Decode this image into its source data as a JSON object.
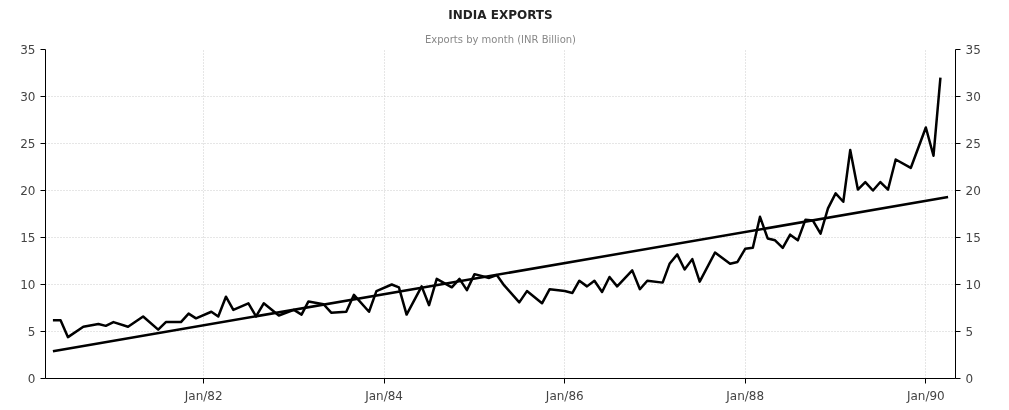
{
  "chart_data": {
    "type": "line",
    "title": "INDIA EXPORTS",
    "subtitle": "Exports by month (INR Billion)",
    "series": [
      {
        "color": "#000000",
        "x": [
          "1980-05",
          "1980-06",
          "1980-07",
          "1980-09",
          "1980-11",
          "1980-12",
          "1981-01",
          "1981-03",
          "1981-05",
          "1981-07",
          "1981-08",
          "1981-10",
          "1981-11",
          "1981-12",
          "1982-02",
          "1982-03",
          "1982-04",
          "1982-05",
          "1982-07",
          "1982-08",
          "1982-09",
          "1982-11",
          "1983-01",
          "1983-02",
          "1983-03",
          "1983-05",
          "1983-06",
          "1983-08",
          "1983-09",
          "1983-11",
          "1983-12",
          "1984-02",
          "1984-03",
          "1984-04",
          "1984-06",
          "1984-07",
          "1984-08",
          "1984-10",
          "1984-11",
          "1984-12",
          "1985-01",
          "1985-03",
          "1985-04",
          "1985-05",
          "1985-07",
          "1985-08",
          "1985-10",
          "1985-11",
          "1986-01",
          "1986-02",
          "1986-03",
          "1986-04",
          "1986-05",
          "1986-06",
          "1986-07",
          "1986-08",
          "1986-10",
          "1986-11",
          "1986-12",
          "1987-02",
          "1987-03",
          "1987-04",
          "1987-05",
          "1987-06",
          "1987-07",
          "1987-09",
          "1987-11",
          "1987-12",
          "1988-01",
          "1988-02",
          "1988-03",
          "1988-04",
          "1988-05",
          "1988-06",
          "1988-07",
          "1988-08",
          "1988-09",
          "1988-10",
          "1988-11",
          "1988-12",
          "1989-01",
          "1989-02",
          "1989-03",
          "1989-04",
          "1989-05",
          "1989-06",
          "1989-07",
          "1989-08",
          "1989-09",
          "1989-11",
          "1990-01",
          "1990-02",
          "1990-03"
        ],
        "values": [
          6.2,
          6.2,
          4.4,
          5.5,
          5.8,
          5.6,
          6.0,
          5.5,
          6.6,
          5.2,
          6.0,
          6.0,
          6.9,
          6.4,
          7.1,
          6.6,
          8.7,
          7.3,
          8.0,
          6.6,
          8.0,
          6.7,
          7.3,
          6.8,
          8.2,
          7.9,
          7.0,
          7.1,
          8.9,
          7.1,
          9.3,
          10.0,
          9.7,
          6.8,
          9.8,
          7.8,
          10.6,
          9.7,
          10.6,
          9.4,
          11.1,
          10.7,
          11.0,
          9.9,
          8.1,
          9.3,
          8.0,
          9.5,
          9.3,
          9.1,
          10.4,
          9.8,
          10.4,
          9.2,
          10.8,
          9.8,
          11.5,
          9.5,
          10.4,
          10.2,
          12.2,
          13.2,
          11.6,
          12.7,
          10.3,
          13.4,
          12.2,
          12.4,
          13.8,
          13.9,
          17.2,
          14.9,
          14.7,
          13.9,
          15.3,
          14.7,
          16.9,
          16.8,
          15.4,
          18.1,
          19.7,
          18.8,
          24.3,
          20.1,
          20.9,
          20.0,
          20.9,
          20.1,
          23.3,
          22.4,
          26.7,
          23.7,
          32.0
        ]
      },
      {
        "color": "#000000",
        "x": [
          "1980-05",
          "1990-04"
        ],
        "values": [
          2.9,
          19.3
        ]
      }
    ],
    "xlim": [
      "1980-04",
      "1990-05"
    ],
    "xticks": [
      {
        "value": "1982-01",
        "label": "Jan/82"
      },
      {
        "value": "1984-01",
        "label": "Jan/84"
      },
      {
        "value": "1986-01",
        "label": "Jan/86"
      },
      {
        "value": "1988-01",
        "label": "Jan/88"
      },
      {
        "value": "1990-01",
        "label": "Jan/90"
      }
    ],
    "ylim": [
      0,
      35
    ],
    "yticks": [
      0,
      5,
      10,
      15,
      20,
      25,
      30,
      35
    ],
    "y2lim": [
      0,
      35
    ],
    "y2ticks": [
      0,
      5,
      10,
      15,
      20,
      25,
      30,
      35
    ],
    "grid": true,
    "marker": "none",
    "line_style": "solid"
  }
}
